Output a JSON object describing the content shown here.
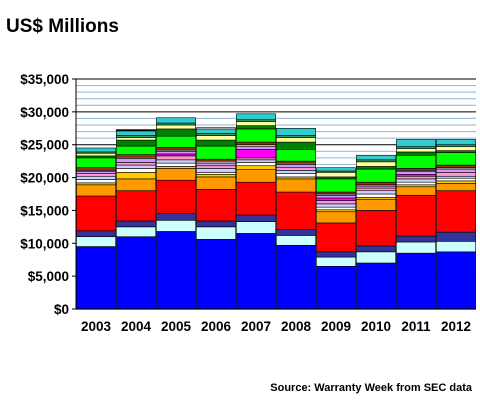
{
  "chart_data": {
    "type": "bar",
    "stacked": true,
    "title": "US$ Millions",
    "source": "Source: Warranty Week from SEC data",
    "categories": [
      "2003",
      "2004",
      "2005",
      "2006",
      "2007",
      "2008",
      "2009",
      "2010",
      "2011",
      "2012"
    ],
    "ylim": [
      0,
      35000
    ],
    "yticks": [
      0,
      5000,
      10000,
      15000,
      20000,
      25000,
      30000,
      35000
    ],
    "ytick_labels": [
      "$0",
      "$5,000",
      "$10,000",
      "$15,000",
      "$20,000",
      "$25,000",
      "$30,000",
      "$35,000"
    ],
    "grid": true,
    "legend": "none",
    "series": [
      {
        "color": "#0000ff",
        "values": [
          9500,
          11000,
          11800,
          10600,
          11500,
          9700,
          6500,
          7000,
          8500,
          8700
        ]
      },
      {
        "color": "#ccffff",
        "values": [
          1500,
          1500,
          1700,
          1900,
          1800,
          1500,
          1400,
          1700,
          1700,
          1600
        ]
      },
      {
        "color": "#333399",
        "values": [
          900,
          900,
          1000,
          900,
          1000,
          900,
          800,
          900,
          900,
          1400
        ]
      },
      {
        "color": "#ff0000",
        "values": [
          5300,
          4600,
          5100,
          4800,
          5000,
          5700,
          4400,
          5400,
          6200,
          6300
        ]
      },
      {
        "color": "#ff9900",
        "values": [
          1700,
          1800,
          1800,
          1900,
          1900,
          2000,
          1700,
          1700,
          1300,
          1100
        ]
      },
      {
        "color": "#ffcc00",
        "values": [
          300,
          1000,
          300,
          400,
          600,
          300,
          300,
          300,
          300,
          400
        ]
      },
      {
        "color": "#ffffff",
        "values": [
          500,
          600,
          500,
          300,
          500,
          500,
          400,
          500,
          400,
          400
        ]
      },
      {
        "color": "#ccccff",
        "values": [
          500,
          500,
          500,
          600,
          400,
          500,
          500,
          500,
          500,
          300
        ]
      },
      {
        "color": "#ff99cc",
        "values": [
          400,
          400,
          600,
          400,
          300,
          400,
          500,
          400,
          400,
          600
        ]
      },
      {
        "color": "#ff00ff",
        "values": [
          0,
          0,
          300,
          0,
          1300,
          0,
          400,
          0,
          300,
          0
        ]
      },
      {
        "color": "#cc99ff",
        "values": [
          300,
          600,
          400,
          400,
          400,
          500,
          400,
          300,
          400,
          500
        ]
      },
      {
        "color": "#c0c0c0",
        "values": [
          200,
          200,
          200,
          300,
          300,
          200,
          200,
          200,
          200,
          200
        ]
      },
      {
        "color": "#993300",
        "values": [
          400,
          400,
          400,
          300,
          400,
          300,
          300,
          400,
          300,
          400
        ]
      },
      {
        "color": "#00ff00",
        "values": [
          1500,
          1300,
          1700,
          2000,
          2000,
          1800,
          2000,
          2000,
          2000,
          1900
        ]
      },
      {
        "color": "#008000",
        "values": [
          300,
          900,
          1100,
          900,
          500,
          1100,
          300,
          400,
          500,
          300
        ]
      },
      {
        "color": "#ffff99",
        "values": [
          400,
          400,
          600,
          700,
          600,
          700,
          700,
          700,
          500,
          600
        ]
      },
      {
        "color": "#339966",
        "values": [
          200,
          300,
          300,
          300,
          300,
          300,
          200,
          300,
          300,
          300
        ]
      },
      {
        "color": "#33cccc",
        "values": [
          600,
          700,
          800,
          700,
          900,
          1100,
          500,
          700,
          1100,
          800
        ]
      },
      {
        "color": "#000000",
        "values": [
          0,
          200,
          0,
          0,
          0,
          0,
          0,
          0,
          0,
          0
        ]
      },
      {
        "color": "#ffffff",
        "values": [
          0,
          0,
          0,
          200,
          0,
          0,
          0,
          0,
          0,
          0
        ]
      }
    ]
  }
}
